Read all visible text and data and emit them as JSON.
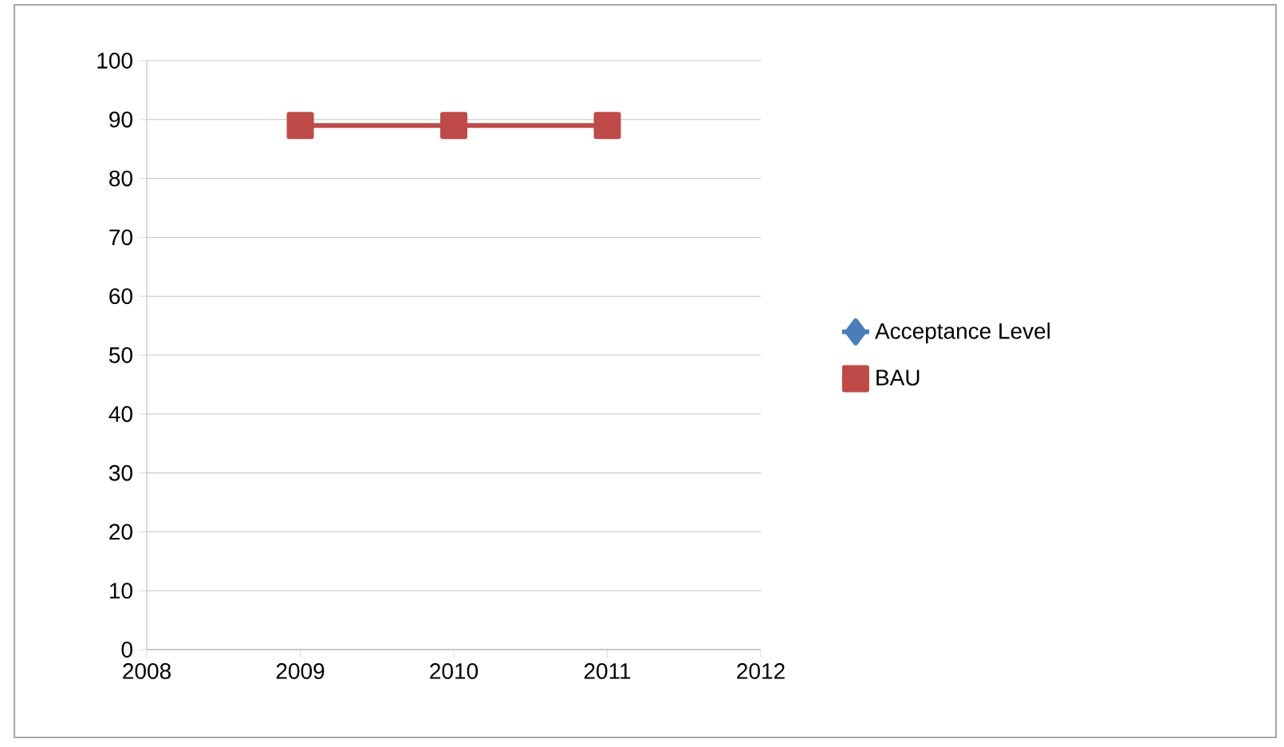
{
  "chart_data": {
    "type": "line",
    "x": [
      2009,
      2010,
      2011
    ],
    "series": [
      {
        "name": "Acceptance Level",
        "color": "#4a7ebb",
        "marker": "diamond",
        "values": [
          null,
          null,
          null
        ]
      },
      {
        "name": "BAU",
        "color": "#be4b48",
        "marker": "square",
        "values": [
          89,
          89,
          89
        ]
      }
    ],
    "xlim": [
      2008,
      2012
    ],
    "xticks": [
      2008,
      2009,
      2010,
      2011,
      2012
    ],
    "ylim": [
      0,
      100
    ],
    "yticks": [
      0,
      10,
      20,
      30,
      40,
      50,
      60,
      70,
      80,
      90,
      100
    ],
    "grid": "y",
    "legend": "right"
  }
}
